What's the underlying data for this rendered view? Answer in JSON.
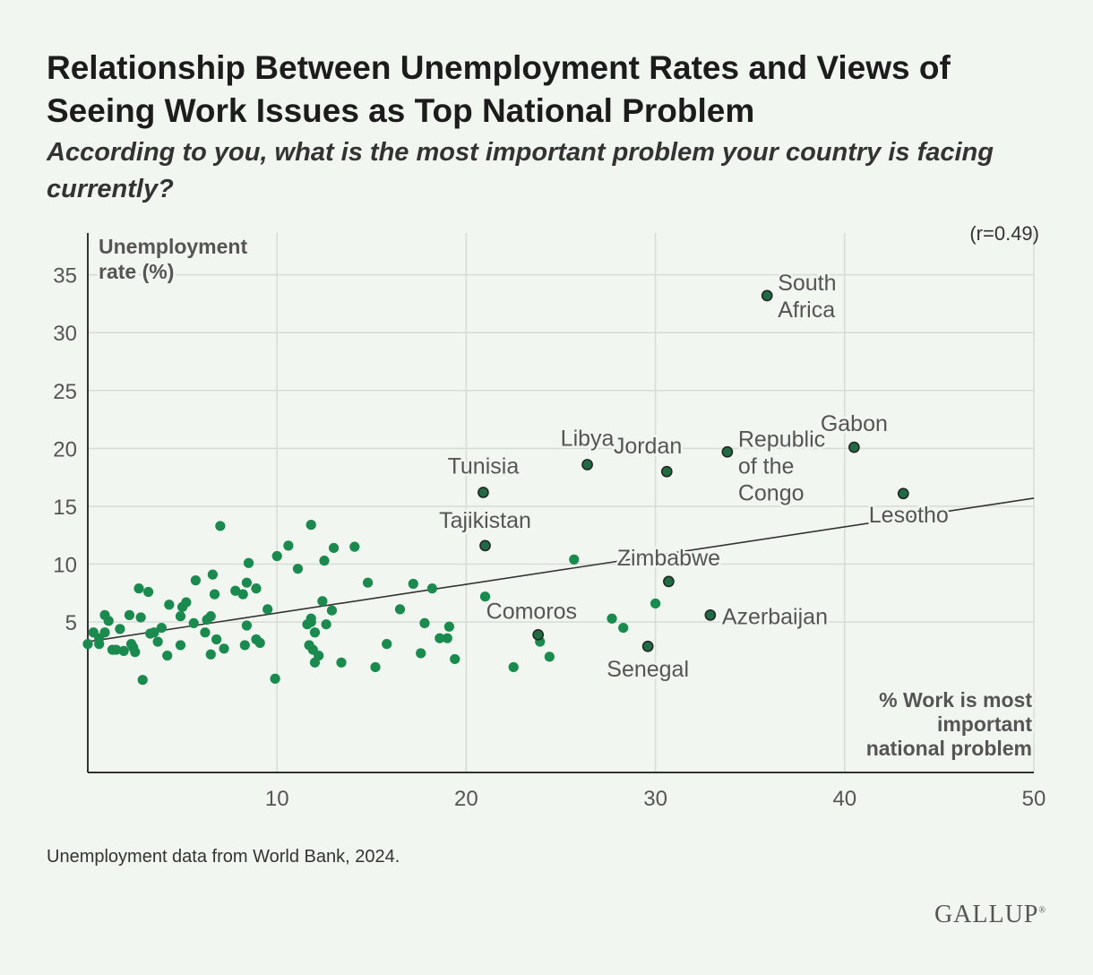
{
  "title": "Relationship Between Unemployment Rates and Views of Seeing Work Issues as Top National Problem",
  "subtitle": "According to you, what is the most important problem your country is facing currently?",
  "footnote": "Unemployment data from World Bank, 2024.",
  "brand": "GALLUP",
  "colors": {
    "point": "#1b8a4e",
    "highlight_point": "#1f6b43",
    "trendline": "#333333",
    "grid": "#d6dcd6",
    "background": "#f2f6f0"
  },
  "chart_data": {
    "type": "scatter",
    "correlation_label": "(r=0.49)",
    "ylabel": "Unemployment rate (%)",
    "xlabel": "% Work is most important national problem",
    "xlim": [
      0,
      50
    ],
    "ylim": [
      -8,
      39
    ],
    "x_ticks": [
      10,
      20,
      30,
      40,
      50
    ],
    "y_ticks": [
      5,
      10,
      15,
      20,
      25,
      30,
      35
    ],
    "trendline": {
      "x": [
        0,
        50
      ],
      "y": [
        3.3,
        15.7
      ]
    },
    "labeled_points": [
      {
        "name": "South Africa",
        "x": 35.9,
        "y": 33.2
      },
      {
        "name": "Gabon",
        "x": 40.5,
        "y": 20.1
      },
      {
        "name": "Republic of the Congo",
        "x": 33.8,
        "y": 19.7
      },
      {
        "name": "Jordan",
        "x": 30.6,
        "y": 18.0
      },
      {
        "name": "Libya",
        "x": 26.4,
        "y": 18.6
      },
      {
        "name": "Tunisia",
        "x": 20.9,
        "y": 16.2
      },
      {
        "name": "Lesotho",
        "x": 43.1,
        "y": 16.1
      },
      {
        "name": "Tajikistan",
        "x": 21.0,
        "y": 11.6
      },
      {
        "name": "Zimbabwe",
        "x": 30.7,
        "y": 8.5
      },
      {
        "name": "Azerbaijan",
        "x": 32.9,
        "y": 5.6
      },
      {
        "name": "Comoros",
        "x": 23.8,
        "y": 3.9
      },
      {
        "name": "Senegal",
        "x": 29.6,
        "y": 2.9
      }
    ],
    "points": [
      [
        0,
        3.1
      ],
      [
        0.3,
        4.1
      ],
      [
        0.6,
        3.6
      ],
      [
        0.6,
        3.1
      ],
      [
        0.9,
        4.1
      ],
      [
        0.9,
        5.6
      ],
      [
        1.1,
        5.1
      ],
      [
        1.3,
        2.6
      ],
      [
        1.5,
        2.6
      ],
      [
        1.7,
        4.4
      ],
      [
        1.9,
        2.5
      ],
      [
        2.2,
        5.6
      ],
      [
        2.3,
        3.1
      ],
      [
        2.4,
        2.8
      ],
      [
        2.5,
        2.4
      ],
      [
        2.7,
        7.9
      ],
      [
        2.8,
        5.4
      ],
      [
        2.9,
        0
      ],
      [
        3.2,
        7.6
      ],
      [
        3.3,
        4.0
      ],
      [
        3.5,
        4.1
      ],
      [
        3.7,
        3.3
      ],
      [
        3.9,
        4.5
      ],
      [
        4.2,
        2.1
      ],
      [
        4.3,
        6.5
      ],
      [
        4.9,
        5.5
      ],
      [
        4.9,
        3.0
      ],
      [
        5.0,
        6.3
      ],
      [
        5.2,
        6.7
      ],
      [
        5.6,
        4.9
      ],
      [
        5.7,
        8.6
      ],
      [
        6.2,
        4.1
      ],
      [
        6.3,
        5.2
      ],
      [
        6.5,
        5.5
      ],
      [
        6.5,
        2.2
      ],
      [
        6.6,
        9.1
      ],
      [
        6.7,
        7.4
      ],
      [
        6.8,
        3.5
      ],
      [
        7.0,
        13.3
      ],
      [
        7.2,
        2.7
      ],
      [
        7.8,
        7.7
      ],
      [
        8.2,
        7.4
      ],
      [
        8.3,
        3.0
      ],
      [
        8.4,
        4.7
      ],
      [
        8.4,
        8.4
      ],
      [
        8.5,
        10.1
      ],
      [
        8.9,
        7.9
      ],
      [
        8.9,
        3.5
      ],
      [
        9.1,
        3.2
      ],
      [
        9.5,
        6.1
      ],
      [
        9.9,
        0.1
      ],
      [
        10.0,
        10.7
      ],
      [
        10.6,
        11.6
      ],
      [
        11.1,
        9.6
      ],
      [
        11.6,
        4.8
      ],
      [
        11.7,
        3.0
      ],
      [
        11.8,
        13.4
      ],
      [
        11.8,
        5.3
      ],
      [
        11.8,
        5.0
      ],
      [
        11.9,
        2.6
      ],
      [
        12.0,
        1.5
      ],
      [
        12.0,
        4.1
      ],
      [
        12.2,
        2.1
      ],
      [
        12.4,
        6.8
      ],
      [
        12.5,
        10.3
      ],
      [
        12.6,
        4.8
      ],
      [
        12.9,
        6.0
      ],
      [
        13.0,
        11.4
      ],
      [
        13.4,
        1.5
      ],
      [
        14.1,
        11.5
      ],
      [
        14.8,
        8.4
      ],
      [
        15.2,
        1.1
      ],
      [
        15.8,
        3.1
      ],
      [
        16.5,
        6.1
      ],
      [
        17.2,
        8.3
      ],
      [
        17.6,
        2.3
      ],
      [
        17.8,
        4.9
      ],
      [
        18.2,
        7.9
      ],
      [
        18.6,
        3.6
      ],
      [
        19.0,
        3.6
      ],
      [
        19.1,
        4.6
      ],
      [
        19.4,
        1.8
      ],
      [
        21.0,
        7.2
      ],
      [
        22.5,
        1.1
      ],
      [
        23.9,
        3.3
      ],
      [
        24.4,
        2.0
      ],
      [
        25.7,
        10.4
      ],
      [
        27.7,
        5.3
      ],
      [
        28.3,
        4.5
      ],
      [
        30.0,
        6.6
      ]
    ]
  }
}
